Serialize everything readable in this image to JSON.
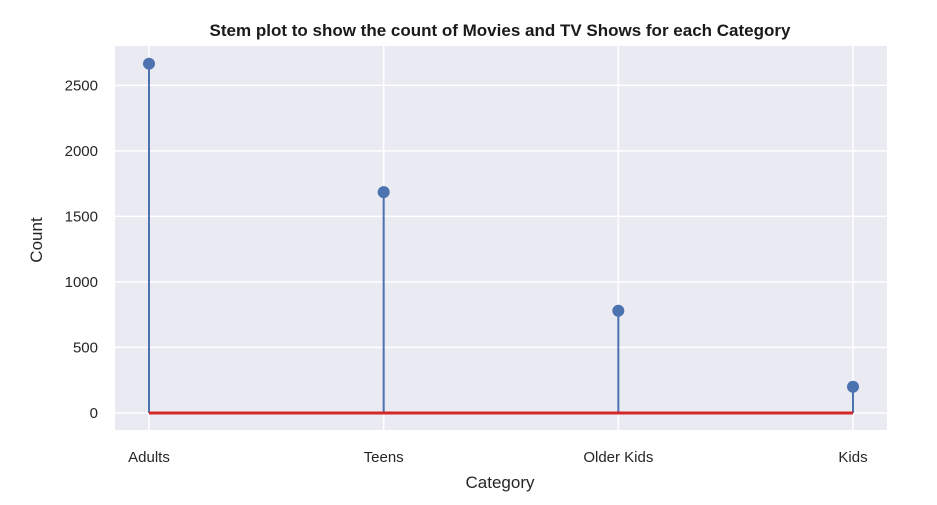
{
  "chart_data": {
    "type": "stem",
    "title": "Stem plot to show the count of Movies and TV Shows for each Category",
    "xlabel": "Category",
    "ylabel": "Count",
    "categories": [
      "Adults",
      "Teens",
      "Older Kids",
      "Kids"
    ],
    "values": [
      2665,
      1685,
      780,
      200
    ],
    "ylim": [
      -130,
      2800
    ],
    "yticks": [
      0,
      500,
      1000,
      1500,
      2000,
      2500
    ],
    "grid": true,
    "background_color": "#eaeaf2",
    "stem_color": "#4c72b0",
    "baseline_color": "#d62728"
  }
}
